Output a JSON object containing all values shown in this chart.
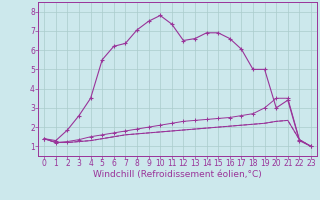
{
  "background_color": "#cce8ec",
  "grid_color": "#aacccc",
  "line_color": "#993399",
  "xlabel": "Windchill (Refroidissement éolien,°C)",
  "xlabel_fontsize": 6.5,
  "tick_fontsize": 5.5,
  "xlim": [
    -0.5,
    23.5
  ],
  "ylim": [
    0.5,
    8.5
  ],
  "xticks": [
    0,
    1,
    2,
    3,
    4,
    5,
    6,
    7,
    8,
    9,
    10,
    11,
    12,
    13,
    14,
    15,
    16,
    17,
    18,
    19,
    20,
    21,
    22,
    23
  ],
  "yticks": [
    1,
    2,
    3,
    4,
    5,
    6,
    7,
    8
  ],
  "line1_x": [
    0,
    1,
    2,
    3,
    4,
    5,
    6,
    7,
    8,
    9,
    10,
    11,
    12,
    13,
    14,
    15,
    16,
    17,
    18,
    19,
    20,
    21,
    22,
    23
  ],
  "line1_y": [
    1.4,
    1.3,
    1.85,
    2.6,
    3.5,
    5.5,
    6.2,
    6.35,
    7.05,
    7.5,
    7.8,
    7.35,
    6.5,
    6.6,
    6.9,
    6.9,
    6.6,
    6.05,
    5.0,
    5.0,
    3.0,
    3.4,
    1.3,
    1.0
  ],
  "line2_x": [
    0,
    1,
    2,
    3,
    4,
    5,
    6,
    7,
    8,
    9,
    10,
    11,
    12,
    13,
    14,
    15,
    16,
    17,
    18,
    19,
    20,
    21,
    22,
    23
  ],
  "line2_y": [
    1.4,
    1.2,
    1.25,
    1.35,
    1.5,
    1.6,
    1.7,
    1.8,
    1.9,
    2.0,
    2.1,
    2.2,
    2.3,
    2.35,
    2.4,
    2.45,
    2.5,
    2.6,
    2.7,
    3.0,
    3.5,
    3.5,
    1.35,
    1.0
  ],
  "line3_x": [
    0,
    1,
    2,
    3,
    4,
    5,
    6,
    7,
    8,
    9,
    10,
    11,
    12,
    13,
    14,
    15,
    16,
    17,
    18,
    19,
    20,
    21,
    22,
    23
  ],
  "line3_y": [
    1.4,
    1.2,
    1.2,
    1.25,
    1.3,
    1.4,
    1.5,
    1.6,
    1.65,
    1.7,
    1.75,
    1.8,
    1.85,
    1.9,
    1.95,
    2.0,
    2.05,
    2.1,
    2.15,
    2.2,
    2.3,
    2.35,
    1.35,
    1.0
  ],
  "line4_x": [
    0,
    1,
    2,
    3,
    4,
    5,
    6,
    7,
    8,
    9,
    10,
    11,
    12,
    13,
    14,
    15,
    16,
    17,
    18,
    19,
    20,
    21,
    22,
    23
  ],
  "line4_y": [
    1.4,
    1.2,
    1.2,
    1.25,
    1.3,
    1.4,
    1.5,
    1.6,
    1.65,
    1.7,
    1.75,
    1.8,
    1.85,
    1.9,
    1.95,
    2.0,
    2.05,
    2.1,
    2.15,
    2.2,
    2.3,
    2.35,
    1.35,
    1.0
  ]
}
